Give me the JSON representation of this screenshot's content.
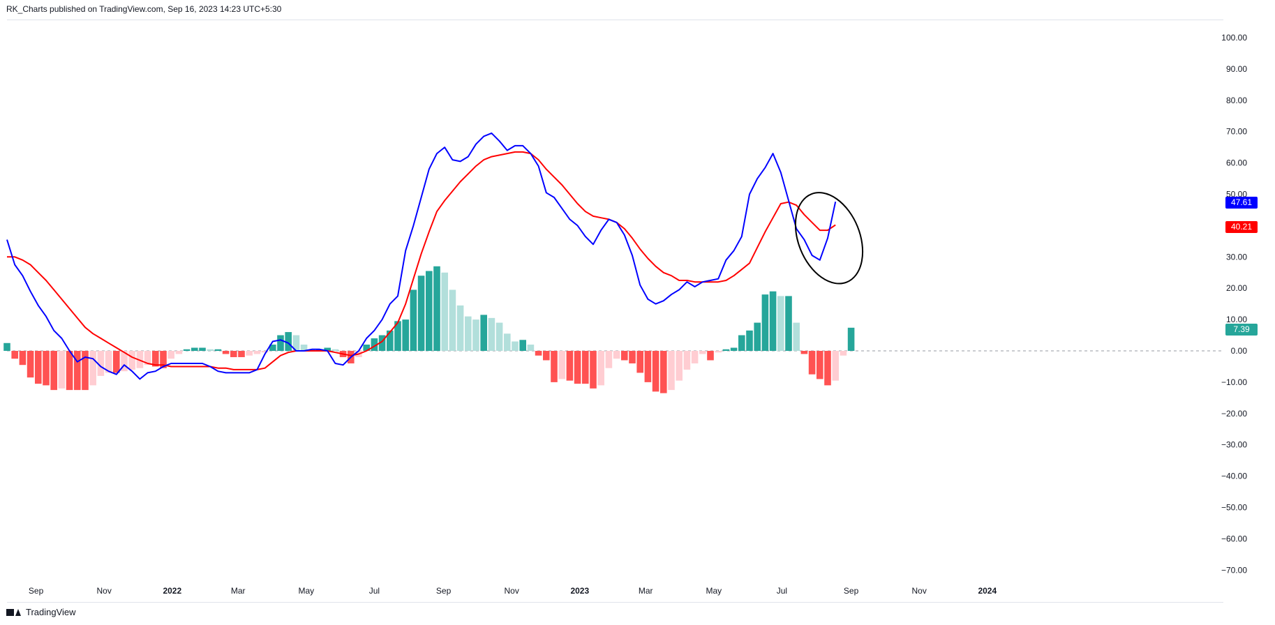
{
  "header": {
    "text": "RK_Charts published on TradingView.com, Sep 16, 2023 14:23 UTC+5:30"
  },
  "footer": {
    "brand": "TradingView",
    "logo_icon": "tradingview-logo-icon"
  },
  "colors": {
    "blue_line": "#0000ff",
    "red_line": "#ff0000",
    "hist_pos_strong": "#26a69a",
    "hist_pos_weak": "#b2dfdb",
    "hist_neg_strong": "#ff5252",
    "hist_neg_weak": "#ffcdd2",
    "zero_line": "#9598a1",
    "axis_text": "#131722"
  },
  "price_labels": [
    {
      "value": "47.61",
      "color": "#0000ff"
    },
    {
      "value": "40.21",
      "color": "#ff0000"
    },
    {
      "value": "7.39",
      "color": "#26a69a"
    }
  ],
  "chart_data": {
    "type": "line",
    "ylim": [
      -72,
      105
    ],
    "y_ticks": [
      "100.00",
      "90.00",
      "80.00",
      "70.00",
      "60.00",
      "50.00",
      "40.00",
      "30.00",
      "20.00",
      "10.00",
      "0.00",
      "−10.00",
      "−20.00",
      "−30.00",
      "−40.00",
      "−50.00",
      "−60.00",
      "−70.00"
    ],
    "x_ticks": [
      {
        "label": "Sep",
        "date": "2021-09-01"
      },
      {
        "label": "Nov",
        "date": "2021-11-01"
      },
      {
        "label": "2022",
        "date": "2022-01-01",
        "bold": true
      },
      {
        "label": "Mar",
        "date": "2022-03-01"
      },
      {
        "label": "May",
        "date": "2022-05-01"
      },
      {
        "label": "Jul",
        "date": "2022-07-01"
      },
      {
        "label": "Sep",
        "date": "2022-09-01"
      },
      {
        "label": "Nov",
        "date": "2022-11-01"
      },
      {
        "label": "2023",
        "date": "2023-01-01",
        "bold": true
      },
      {
        "label": "Mar",
        "date": "2023-03-01"
      },
      {
        "label": "May",
        "date": "2023-05-01"
      },
      {
        "label": "Jul",
        "date": "2023-07-01"
      },
      {
        "label": "Sep",
        "date": "2023-09-01"
      },
      {
        "label": "Nov",
        "date": "2023-11-01"
      },
      {
        "label": "2024",
        "date": "2024-01-01",
        "bold": true
      }
    ],
    "first_bar_date": "2021-08-06",
    "bar_interval_days": 7,
    "series": [
      {
        "type": "line",
        "color": "#0000ff",
        "values": [
          35.5,
          27.5,
          24,
          19,
          14.5,
          11,
          6.5,
          4,
          0,
          -3.5,
          -2,
          -2.5,
          -5,
          -6.5,
          -7.5,
          -4.5,
          -6.5,
          -9,
          -7,
          -6.5,
          -5,
          -4,
          -4,
          -4,
          -4,
          -4,
          -5,
          -6.5,
          -7,
          -7,
          -7,
          -7,
          -6,
          -1,
          3,
          3.5,
          2.5,
          0,
          0,
          0.5,
          0.5,
          0,
          -4,
          -4.5,
          -2,
          0,
          4,
          6.5,
          10,
          15,
          17.5,
          32,
          40,
          49,
          58,
          63,
          65,
          61,
          60.5,
          62,
          66,
          68.5,
          69.5,
          67,
          64,
          65.5,
          65.5,
          63,
          59,
          50.5,
          49,
          45.5,
          42,
          40,
          36.5,
          34,
          38.5,
          42,
          41,
          37,
          30.5,
          21,
          16.5,
          15,
          16,
          18,
          19.5,
          22,
          20.5,
          22,
          22.5,
          23,
          29,
          32,
          36.5,
          50,
          55,
          58.5,
          63,
          57,
          48,
          39,
          35.5,
          30.5,
          29,
          36,
          47.61
        ]
      },
      {
        "type": "line",
        "color": "#ff0000",
        "values": [
          30,
          30,
          29,
          27.5,
          25,
          22.5,
          19.5,
          16.5,
          13.5,
          10.5,
          7.5,
          5.5,
          4,
          2.5,
          1,
          -0.5,
          -2,
          -3,
          -4,
          -4.5,
          -4.5,
          -5,
          -5,
          -5,
          -5,
          -5,
          -5,
          -5.5,
          -5.5,
          -6,
          -6,
          -6,
          -6,
          -5.5,
          -3.5,
          -1.5,
          -0.5,
          0,
          0,
          0,
          0,
          0,
          -0.5,
          -1,
          -1.5,
          -1,
          0,
          1.5,
          3,
          6,
          9,
          15,
          23,
          31,
          38,
          44.5,
          48,
          51,
          54,
          56.5,
          59,
          61,
          62,
          62.5,
          63,
          63.5,
          63.5,
          63,
          61,
          58,
          55.5,
          53,
          50,
          47,
          44.5,
          43,
          42.5,
          42,
          41,
          39,
          36,
          32.5,
          29.5,
          27,
          25,
          24,
          22.5,
          22.5,
          22,
          22,
          22,
          22,
          22.5,
          24,
          26,
          28,
          33,
          38,
          42.5,
          47,
          47.5,
          46.5,
          43.5,
          41,
          38.5,
          38.5,
          40.21
        ]
      },
      {
        "type": "bar",
        "values": [
          2.5,
          -2.5,
          -4.5,
          -8.5,
          -10.5,
          -11,
          -12.5,
          -12,
          -12.5,
          -12.5,
          -12.5,
          -11,
          -8,
          -7,
          -7,
          -6.5,
          -6,
          -5.5,
          -4.5,
          -5,
          -5.5,
          -2.5,
          -1,
          0.5,
          1,
          1,
          0.5,
          0.5,
          -1,
          -2,
          -2,
          -1.5,
          -1,
          -0.5,
          2,
          5,
          6,
          5,
          2,
          0.5,
          0.5,
          1,
          0.5,
          -2,
          -4,
          -2,
          2,
          4,
          5,
          6.5,
          9.5,
          10,
          19.5,
          24,
          25.5,
          27,
          25,
          19.5,
          14.5,
          11,
          10,
          11.5,
          10.5,
          9,
          5.5,
          3,
          3.5,
          2,
          -1.5,
          -3,
          -10,
          -9,
          -9.5,
          -10.5,
          -10.5,
          -12,
          -11,
          -5.5,
          -2.5,
          -3,
          -4,
          -7,
          -10,
          -13,
          -13.5,
          -12.5,
          -9.5,
          -6,
          -4,
          -1,
          -3,
          -0.5,
          0.5,
          1,
          5,
          6.5,
          9,
          18,
          19,
          17.5,
          17.5,
          9,
          -1,
          -7.5,
          -9,
          -11,
          -9.5,
          -1.5,
          7.39
        ]
      }
    ],
    "annotations": [
      {
        "type": "ellipse",
        "around": "latest crossover"
      }
    ]
  }
}
